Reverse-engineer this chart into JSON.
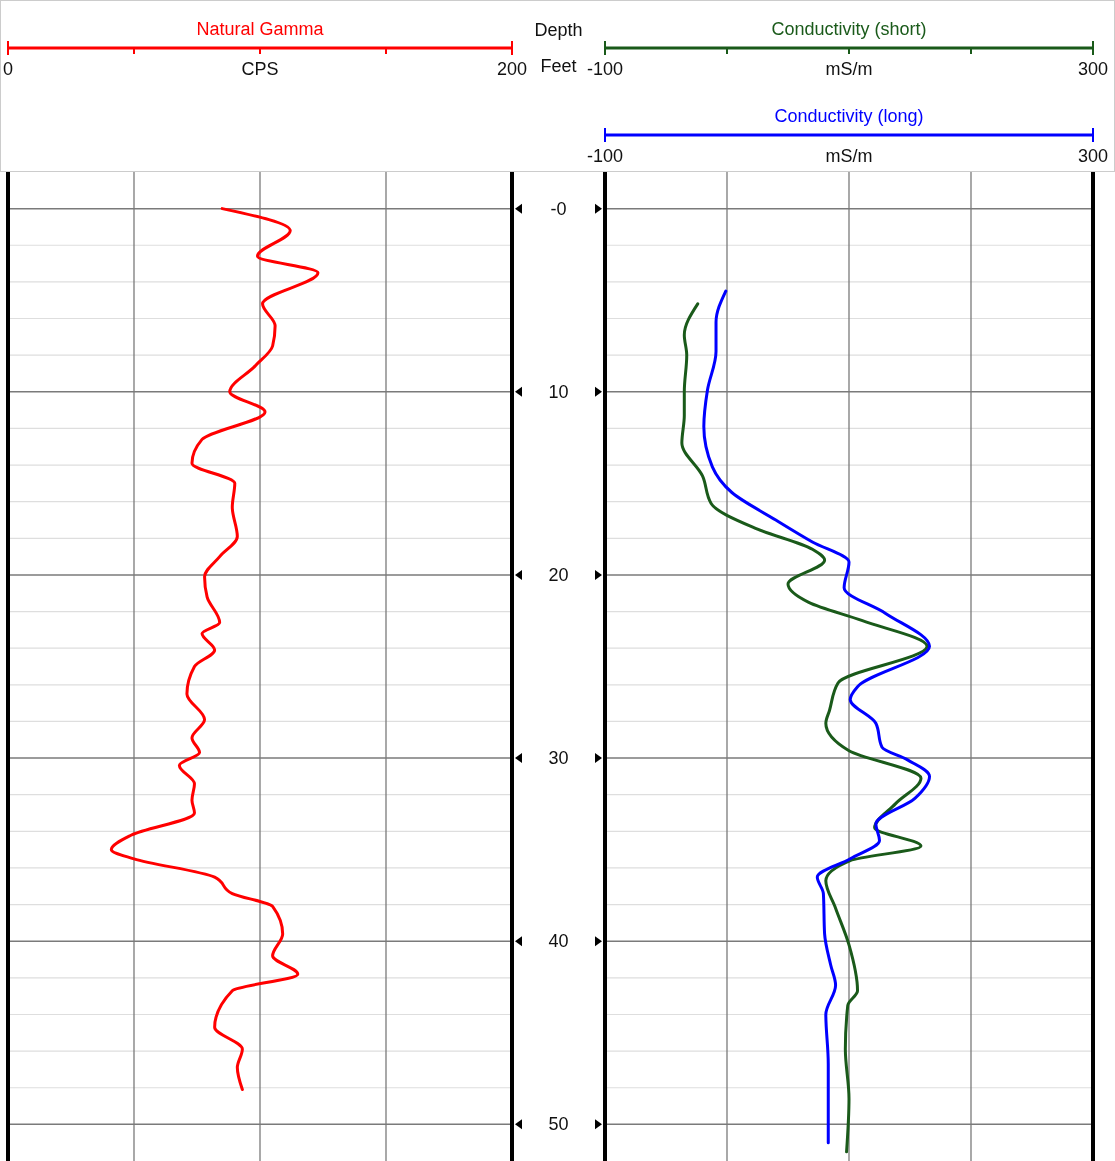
{
  "chart_data": [
    {
      "type": "line",
      "orientation": "horizontal",
      "title": "Natural Gamma",
      "xlabel": "CPS",
      "ylabel": "Depth",
      "annotations": [
        "Feet"
      ],
      "xlim": [
        0,
        200
      ],
      "xticks": [
        0,
        {
          "value": 50,
          "label": null
        },
        {
          "value": 100,
          "label": null
        },
        {
          "value": 150,
          "label": null
        },
        200
      ],
      "ylim": [
        52,
        -2
      ],
      "yticks": [
        {
          "value": 0,
          "label": "-0"
        },
        {
          "value": 2,
          "label": null
        },
        {
          "value": 4,
          "label": null
        },
        {
          "value": 6,
          "label": null
        },
        {
          "value": 8,
          "label": null
        },
        10,
        {
          "value": 12,
          "label": null
        },
        {
          "value": 14,
          "label": null
        },
        {
          "value": 16,
          "label": null
        },
        {
          "value": 18,
          "label": null
        },
        20,
        {
          "value": 22,
          "label": null
        },
        {
          "value": 24,
          "label": null
        },
        {
          "value": 26,
          "label": null
        },
        {
          "value": 28,
          "label": null
        },
        30,
        {
          "value": 32,
          "label": null
        },
        {
          "value": 34,
          "label": null
        },
        {
          "value": 36,
          "label": null
        },
        {
          "value": 38,
          "label": null
        },
        40,
        {
          "value": 42,
          "label": null
        },
        {
          "value": 44,
          "label": null
        },
        {
          "value": 46,
          "label": null
        },
        {
          "value": 48,
          "label": null
        },
        50
      ],
      "grid": true,
      "line_style": "solid",
      "series": [
        {
          "color": "#ff0000",
          "values": [
            85,
            112,
            99,
            123,
            101,
            106,
            105,
            98,
            88,
            102,
            77,
            73,
            90,
            89,
            91,
            84,
            78,
            79,
            84,
            77,
            82,
            74,
            71,
            78,
            73,
            76,
            68,
            74,
            73,
            74,
            49,
            41,
            50,
            82,
            89,
            105,
            109,
            105,
            115,
            89,
            82,
            93,
            91,
            93
          ],
          "x": [
            0,
            1.2,
            2.6,
            3.5,
            5.2,
            6.4,
            7.5,
            8.6,
            10.0,
            11.1,
            12.6,
            13.9,
            15.0,
            16.3,
            17.9,
            19.0,
            20.1,
            21.2,
            22.6,
            23.2,
            24.1,
            25.0,
            26.5,
            27.9,
            28.9,
            29.7,
            30.4,
            31.4,
            32.3,
            33.0,
            34.2,
            35.0,
            35.5,
            36.5,
            37.4,
            38.1,
            39.6,
            40.8,
            41.8,
            42.7,
            44.7,
            45.9,
            46.9,
            48.1
          ]
        }
      ]
    },
    {
      "type": "line",
      "orientation": "horizontal",
      "xlabel": "mS/m",
      "x2label": "mS/m",
      "xlim": [
        -100,
        300
      ],
      "xticks": [
        -100,
        {
          "value": 0,
          "label": null
        },
        {
          "value": 100,
          "label": null
        },
        {
          "value": 200,
          "label": null
        },
        300
      ],
      "x2lim": [
        -100,
        300
      ],
      "x2ticks": [
        -100,
        300
      ],
      "ylim": [
        52,
        -2
      ],
      "yticks": [
        0,
        {
          "value": 2,
          "label": null
        },
        {
          "value": 4,
          "label": null
        },
        {
          "value": 6,
          "label": null
        },
        {
          "value": 8,
          "label": null
        },
        10,
        {
          "value": 12,
          "label": null
        },
        {
          "value": 14,
          "label": null
        },
        {
          "value": 16,
          "label": null
        },
        {
          "value": 18,
          "label": null
        },
        20,
        {
          "value": 22,
          "label": null
        },
        {
          "value": 24,
          "label": null
        },
        {
          "value": 26,
          "label": null
        },
        {
          "value": 28,
          "label": null
        },
        30,
        {
          "value": 32,
          "label": null
        },
        {
          "value": 34,
          "label": null
        },
        {
          "value": 36,
          "label": null
        },
        {
          "value": 38,
          "label": null
        },
        40,
        {
          "value": 42,
          "label": null
        },
        {
          "value": 44,
          "label": null
        },
        {
          "value": 46,
          "label": null
        },
        {
          "value": 48,
          "label": null
        },
        50
      ],
      "tick_labels": "x",
      "grid": true,
      "line_style": "solid",
      "series": [
        {
          "name": "Conductivity (short)",
          "color": "#1a5a1a",
          "values": [
            -24,
            -35,
            -33,
            -35,
            -35,
            -37,
            -20,
            -13,
            25,
            70,
            80,
            50,
            67,
            111,
            164,
            91,
            84,
            81,
            100,
            159,
            138,
            121,
            159,
            101,
            81,
            89,
            100,
            107,
            99,
            97,
            100,
            98
          ],
          "x": [
            5.2,
            6.9,
            8.0,
            10.0,
            11.3,
            12.8,
            14.6,
            16.1,
            17.5,
            18.6,
            19.2,
            20.5,
            21.5,
            22.5,
            23.9,
            25.9,
            27.4,
            28.1,
            29.6,
            31.1,
            32.5,
            33.8,
            34.8,
            35.6,
            36.7,
            38.2,
            40.2,
            42.7,
            43.5,
            45.9,
            48.6,
            51.5
          ]
        },
        {
          "name": "Conductivity (long)",
          "color": "#0000ff",
          "axis": "x2",
          "values": [
            -1,
            -9,
            -9,
            -16,
            -19,
            -12,
            4,
            40,
            70,
            100,
            96,
            130,
            166,
            107,
            101,
            122,
            127,
            148,
            166,
            154,
            122,
            125,
            101,
            74,
            79,
            80,
            85,
            89,
            81,
            83,
            83
          ],
          "x": [
            4.5,
            6.2,
            7.8,
            9.9,
            11.9,
            14.1,
            15.5,
            17.0,
            18.2,
            19.3,
            20.7,
            22.1,
            23.9,
            26.1,
            26.8,
            28.1,
            29.4,
            30.1,
            31.0,
            32.2,
            33.6,
            34.5,
            35.5,
            36.5,
            37.4,
            39.6,
            41.3,
            42.4,
            44.0,
            46.7,
            51.0
          ]
        }
      ]
    }
  ]
}
